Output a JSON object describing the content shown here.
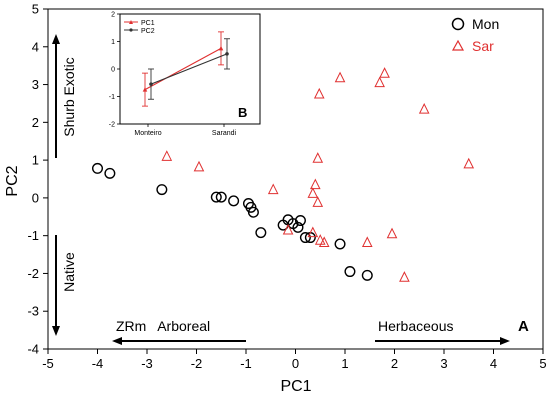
{
  "chart_data": [
    {
      "type": "scatter",
      "title": "",
      "xlabel": "PC1",
      "ylabel": "PC2",
      "xlim": [
        -5,
        5
      ],
      "ylim": [
        -4,
        5
      ],
      "x_ticks": [
        "-5",
        "-4",
        "-3",
        "-2",
        "-1",
        "0",
        "1",
        "2",
        "3",
        "4",
        "5"
      ],
      "y_ticks": [
        "-4",
        "-3",
        "-2",
        "-1",
        "0",
        "1",
        "2",
        "3",
        "4",
        "5"
      ],
      "grid": false,
      "legend_position": "top-right",
      "series": [
        {
          "name": "Mon",
          "marker": "circle",
          "color": "#000000",
          "points": [
            [
              -4.0,
              0.78
            ],
            [
              -3.75,
              0.65
            ],
            [
              -2.7,
              0.22
            ],
            [
              -1.6,
              0.02
            ],
            [
              -1.5,
              0.02
            ],
            [
              -1.25,
              -0.08
            ],
            [
              -0.95,
              -0.15
            ],
            [
              -0.9,
              -0.25
            ],
            [
              -0.85,
              -0.38
            ],
            [
              -0.7,
              -0.92
            ],
            [
              -0.25,
              -0.72
            ],
            [
              -0.15,
              -0.58
            ],
            [
              -0.05,
              -0.68
            ],
            [
              0.05,
              -0.78
            ],
            [
              0.1,
              -0.6
            ],
            [
              0.2,
              -1.05
            ],
            [
              0.3,
              -1.05
            ],
            [
              0.9,
              -1.22
            ],
            [
              1.1,
              -1.95
            ],
            [
              1.45,
              -2.05
            ]
          ]
        },
        {
          "name": "Sar",
          "marker": "triangle",
          "color": "#e03030",
          "points": [
            [
              -2.6,
              1.1
            ],
            [
              -1.95,
              0.82
            ],
            [
              -0.45,
              0.22
            ],
            [
              -0.15,
              -0.85
            ],
            [
              0.35,
              0.12
            ],
            [
              0.4,
              0.35
            ],
            [
              0.45,
              1.05
            ],
            [
              0.45,
              -0.12
            ],
            [
              0.48,
              2.75
            ],
            [
              0.9,
              3.18
            ],
            [
              1.7,
              3.05
            ],
            [
              1.8,
              3.3
            ],
            [
              2.6,
              2.35
            ],
            [
              3.5,
              0.9
            ],
            [
              0.35,
              -0.92
            ],
            [
              0.5,
              -1.12
            ],
            [
              0.58,
              -1.18
            ],
            [
              1.45,
              -1.18
            ],
            [
              1.95,
              -0.95
            ],
            [
              2.2,
              -2.1
            ]
          ]
        }
      ],
      "annotations": {
        "upper_label": "Shurb Exotic",
        "lower_label": "Native",
        "left_label": "ZRm   Arboreal",
        "right_label": "Herbaceous",
        "panel_label": "A"
      }
    },
    {
      "type": "line",
      "title": "",
      "categories": [
        "Monteiro",
        "Sarandi"
      ],
      "ylim": [
        -2,
        2
      ],
      "y_ticks": [
        "-2",
        "-1",
        "0",
        "1",
        "2"
      ],
      "panel_label": "B",
      "legend_position": "top-left",
      "series": [
        {
          "name": "PC1",
          "color": "#e03030",
          "marker": "triangle",
          "values": [
            -0.75,
            0.75
          ],
          "errors": [
            0.6,
            0.6
          ]
        },
        {
          "name": "PC2",
          "color": "#333333",
          "marker": "circle",
          "values": [
            -0.55,
            0.55
          ],
          "errors": [
            0.55,
            0.55
          ]
        }
      ]
    }
  ]
}
